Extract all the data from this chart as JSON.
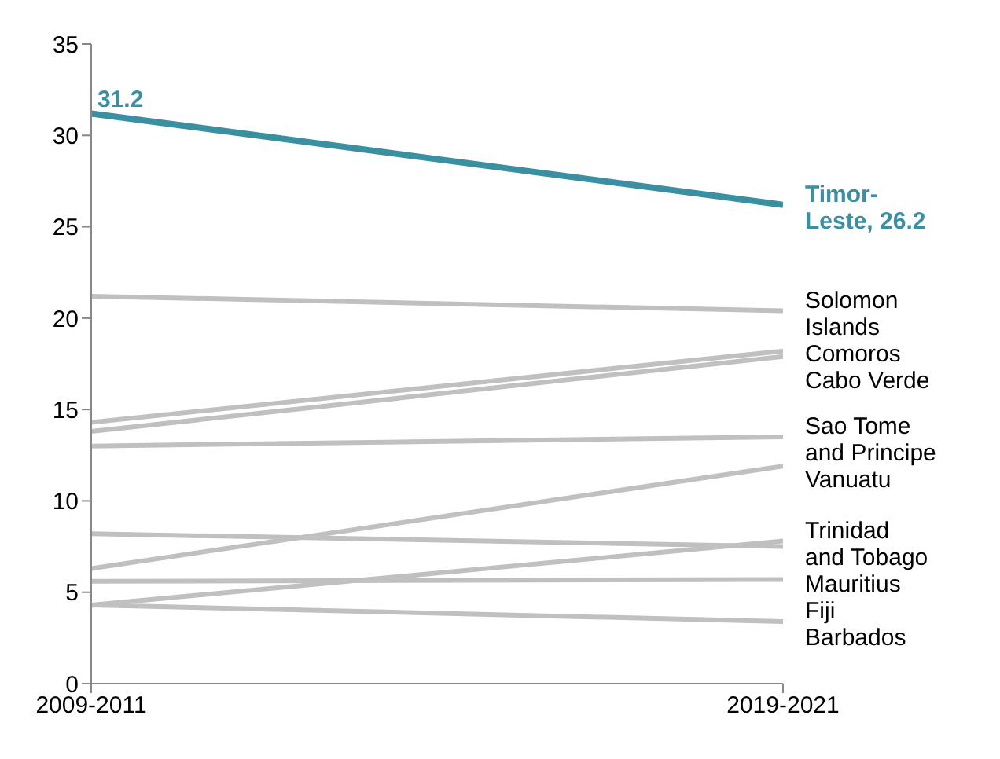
{
  "chart_data": {
    "type": "line",
    "categories": [
      "2009-2011",
      "2019-2021"
    ],
    "ylim": [
      0,
      35
    ],
    "yticks": [
      0,
      5,
      10,
      15,
      20,
      25,
      30,
      35
    ],
    "grid": false,
    "marker": "none",
    "line_style": "solid",
    "series": [
      {
        "name": "Solomon Islands",
        "color": "#c0c0c0",
        "values": [
          21.2,
          20.4
        ]
      },
      {
        "name": "Comoros",
        "color": "#c0c0c0",
        "values": [
          14.3,
          18.2
        ]
      },
      {
        "name": "Cabo Verde",
        "color": "#c0c0c0",
        "values": [
          13.8,
          17.9
        ]
      },
      {
        "name": "Sao Tome and Principe",
        "color": "#c0c0c0",
        "values": [
          13.0,
          13.5
        ]
      },
      {
        "name": "Vanuatu",
        "color": "#c0c0c0",
        "values": [
          6.3,
          11.9
        ]
      },
      {
        "name": "Mauritius",
        "color": "#c0c0c0",
        "values": [
          8.2,
          7.5
        ]
      },
      {
        "name": "Trinidad and Tobago",
        "color": "#c0c0c0",
        "values": [
          4.3,
          7.8
        ]
      },
      {
        "name": "Fiji",
        "color": "#c0c0c0",
        "values": [
          5.6,
          5.7
        ]
      },
      {
        "name": "Barbados",
        "color": "#c0c0c0",
        "values": [
          4.3,
          3.4
        ]
      },
      {
        "name": "Timor-Leste,",
        "color": "#3a8fa0",
        "values": [
          31.2,
          26.2
        ],
        "value_labels": [
          "31.2",
          "26.2"
        ]
      }
    ]
  }
}
